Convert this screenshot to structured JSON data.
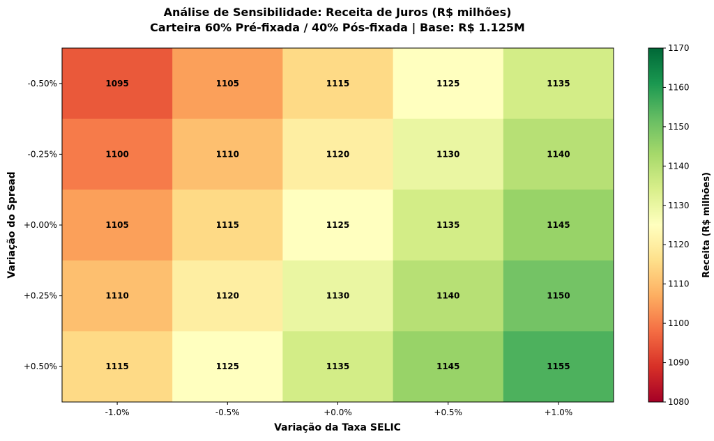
{
  "chart_data": {
    "type": "heatmap",
    "title": "Análise de Sensibilidade: Receita de Juros (R$ milhões)",
    "subtitle": "Carteira 60% Pré-fixada / 40% Pós-fixada | Base: R$ 1.125M",
    "xlabel": "Variação da Taxa SELIC",
    "ylabel": "Variação do Spread",
    "x_categories": [
      "-1.0%",
      "-0.5%",
      "+0.0%",
      "+0.5%",
      "+1.0%"
    ],
    "y_categories": [
      "-0.50%",
      "-0.25%",
      "+0.00%",
      "+0.25%",
      "+0.50%"
    ],
    "values": [
      [
        1095,
        1105,
        1115,
        1125,
        1135
      ],
      [
        1100,
        1110,
        1120,
        1130,
        1140
      ],
      [
        1105,
        1115,
        1125,
        1135,
        1145
      ],
      [
        1110,
        1120,
        1130,
        1140,
        1150
      ],
      [
        1115,
        1125,
        1135,
        1145,
        1155
      ]
    ],
    "colormap": "RdYlGn",
    "color_range": [
      1080,
      1170
    ],
    "colorbar": {
      "label": "Receita (R$ milhões)",
      "ticks": [
        "1080",
        "1090",
        "1100",
        "1110",
        "1120",
        "1130",
        "1140",
        "1150",
        "1160",
        "1170"
      ]
    },
    "colormap_stops": [
      "#a50026",
      "#d73027",
      "#f46d43",
      "#fdae61",
      "#fee08b",
      "#ffffbf",
      "#d9ef8b",
      "#a6d96a",
      "#66bd63",
      "#1a9850",
      "#006837"
    ]
  }
}
